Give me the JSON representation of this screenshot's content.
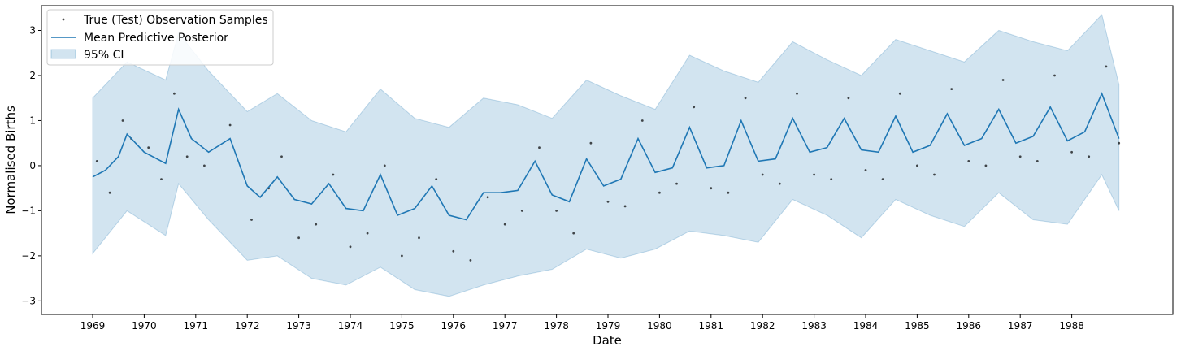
{
  "chart_data": {
    "type": "line",
    "title": "",
    "xlabel": "Date",
    "ylabel": "Normalised Births",
    "x_range": [
      "1969-01-01",
      "1989-01-01"
    ],
    "ylim": [
      -3.3,
      3.55
    ],
    "x_ticks": [
      "1969",
      "1970",
      "1971",
      "1972",
      "1973",
      "1974",
      "1975",
      "1976",
      "1977",
      "1978",
      "1979",
      "1980",
      "1981",
      "1982",
      "1983",
      "1984",
      "1985",
      "1986",
      "1987",
      "1988"
    ],
    "y_ticks": [
      3,
      2,
      1,
      0,
      -1,
      -2,
      -3
    ],
    "y_tick_labels": [
      "3",
      "2",
      "1",
      "0",
      "−1",
      "−2",
      "−3"
    ],
    "grid": false,
    "legend_position": "top-left",
    "legend": [
      {
        "label": "True (Test) Observation Samples",
        "kind": "marker"
      },
      {
        "label": "Mean Predictive Posterior",
        "kind": "line"
      },
      {
        "label": "95% CI",
        "kind": "patch"
      }
    ],
    "colors": {
      "mean": "#1f77b4",
      "ci_fill": "#1f77b4",
      "points": "#000000"
    },
    "series": [
      {
        "name": "Mean Predictive Posterior",
        "x": [
          "1969-01",
          "1969-04",
          "1969-07",
          "1969-09",
          "1970-01",
          "1970-06",
          "1970-09",
          "1970-12",
          "1971-04",
          "1971-09",
          "1972-01",
          "1972-04",
          "1972-08",
          "1972-12",
          "1973-04",
          "1973-08",
          "1973-12",
          "1974-04",
          "1974-08",
          "1974-12",
          "1975-04",
          "1975-08",
          "1975-12",
          "1976-04",
          "1976-08",
          "1976-12",
          "1977-04",
          "1977-08",
          "1977-12",
          "1978-04",
          "1978-08",
          "1978-12",
          "1979-04",
          "1979-08",
          "1979-12",
          "1980-04",
          "1980-08",
          "1980-12",
          "1981-04",
          "1981-08",
          "1981-12",
          "1982-04",
          "1982-08",
          "1982-12",
          "1983-04",
          "1983-08",
          "1983-12",
          "1984-04",
          "1984-08",
          "1984-12",
          "1985-04",
          "1985-08",
          "1985-12",
          "1986-04",
          "1986-08",
          "1986-12",
          "1987-04",
          "1987-08",
          "1987-12",
          "1988-04",
          "1988-08",
          "1988-12"
        ],
        "y": [
          -0.25,
          -0.1,
          0.2,
          0.7,
          0.3,
          0.05,
          1.25,
          0.6,
          0.3,
          0.6,
          -0.45,
          -0.7,
          -0.25,
          -0.75,
          -0.85,
          -0.4,
          -0.95,
          -1.0,
          -0.2,
          -1.1,
          -0.95,
          -0.45,
          -1.1,
          -1.2,
          -0.6,
          -0.6,
          -0.55,
          0.1,
          -0.65,
          -0.8,
          0.15,
          -0.45,
          -0.3,
          0.6,
          -0.15,
          -0.05,
          0.85,
          -0.05,
          0.0,
          1.0,
          0.1,
          0.15,
          1.05,
          0.3,
          0.4,
          1.05,
          0.35,
          0.3,
          1.1,
          0.3,
          0.45,
          1.15,
          0.45,
          0.6,
          1.25,
          0.5,
          0.65,
          1.3,
          0.55,
          0.75,
          1.6,
          0.6
        ]
      },
      {
        "name": "95% CI",
        "x": [
          "1969-01",
          "1969-09",
          "1970-06",
          "1970-09",
          "1971-04",
          "1972-01",
          "1972-08",
          "1973-04",
          "1973-12",
          "1974-08",
          "1975-04",
          "1975-12",
          "1976-08",
          "1977-04",
          "1977-12",
          "1978-08",
          "1979-04",
          "1979-12",
          "1980-08",
          "1981-04",
          "1981-12",
          "1982-08",
          "1983-04",
          "1983-12",
          "1984-08",
          "1985-04",
          "1985-12",
          "1986-08",
          "1987-04",
          "1987-12",
          "1988-08",
          "1988-12"
        ],
        "upper": [
          1.5,
          2.3,
          1.9,
          2.95,
          2.1,
          1.2,
          1.6,
          1.0,
          0.75,
          1.7,
          1.05,
          0.85,
          1.5,
          1.35,
          1.05,
          1.9,
          1.55,
          1.25,
          2.45,
          2.1,
          1.85,
          2.75,
          2.35,
          2.0,
          2.8,
          2.55,
          2.3,
          3.0,
          2.75,
          2.55,
          3.35,
          1.8
        ],
        "lower": [
          -1.95,
          -1.0,
          -1.55,
          -0.4,
          -1.2,
          -2.1,
          -2.0,
          -2.5,
          -2.65,
          -2.25,
          -2.75,
          -2.9,
          -2.65,
          -2.45,
          -2.3,
          -1.85,
          -2.05,
          -1.85,
          -1.45,
          -1.55,
          -1.7,
          -0.75,
          -1.1,
          -1.6,
          -0.75,
          -1.1,
          -1.35,
          -0.6,
          -1.2,
          -1.3,
          -0.2,
          -1.0
        ]
      },
      {
        "name": "True (Test) Observation Samples",
        "x": [
          "1969-02",
          "1969-05",
          "1969-08",
          "1969-10",
          "1970-02",
          "1970-05",
          "1970-08",
          "1970-11",
          "1971-03",
          "1971-09",
          "1972-02",
          "1972-06",
          "1972-09",
          "1973-01",
          "1973-05",
          "1973-09",
          "1974-01",
          "1974-05",
          "1974-09",
          "1975-01",
          "1975-05",
          "1975-09",
          "1976-01",
          "1976-05",
          "1976-09",
          "1977-01",
          "1977-05",
          "1977-09",
          "1978-01",
          "1978-05",
          "1978-09",
          "1979-01",
          "1979-05",
          "1979-09",
          "1980-01",
          "1980-05",
          "1980-09",
          "1981-01",
          "1981-05",
          "1981-09",
          "1982-01",
          "1982-05",
          "1982-09",
          "1983-01",
          "1983-05",
          "1983-09",
          "1984-01",
          "1984-05",
          "1984-09",
          "1985-01",
          "1985-05",
          "1985-09",
          "1986-01",
          "1986-05",
          "1986-09",
          "1987-01",
          "1987-05",
          "1987-09",
          "1988-01",
          "1988-05",
          "1988-09",
          "1988-12"
        ],
        "y": [
          0.1,
          -0.6,
          1.0,
          0.6,
          0.4,
          -0.3,
          1.6,
          0.2,
          0.0,
          0.9,
          -1.2,
          -0.5,
          0.2,
          -1.6,
          -1.3,
          -0.2,
          -1.8,
          -1.5,
          0.0,
          -2.0,
          -1.6,
          -0.3,
          -1.9,
          -2.1,
          -0.7,
          -1.3,
          -1.0,
          0.4,
          -1.0,
          -1.5,
          0.5,
          -0.8,
          -0.9,
          1.0,
          -0.6,
          -0.4,
          1.3,
          -0.5,
          -0.6,
          1.5,
          -0.2,
          -0.4,
          1.6,
          -0.2,
          -0.3,
          1.5,
          -0.1,
          -0.3,
          1.6,
          0.0,
          -0.2,
          1.7,
          0.1,
          0.0,
          1.9,
          0.2,
          0.1,
          2.0,
          0.3,
          0.2,
          2.2,
          0.5
        ]
      }
    ]
  }
}
